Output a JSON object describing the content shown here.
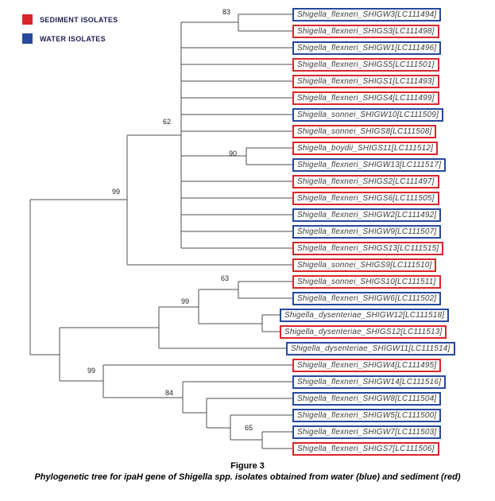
{
  "legend": {
    "items": [
      {
        "key": "sediment",
        "label": "SEDIMENT ISOLATES",
        "color": "#d9262c"
      },
      {
        "key": "water",
        "label": "WATER ISOLATES",
        "color": "#27489c"
      }
    ]
  },
  "tree": {
    "bootstraps": [
      {
        "node": "flexneri-top-pair",
        "value": "83"
      },
      {
        "node": "upper-polytomy",
        "value": "62"
      },
      {
        "node": "boydii-flexneri-pair",
        "value": "90"
      },
      {
        "node": "upper-main-clade",
        "value": "99"
      },
      {
        "node": "sonnei-pair",
        "value": "63"
      },
      {
        "node": "middle-clade",
        "value": "99"
      },
      {
        "node": "lower-main-clade",
        "value": "99"
      },
      {
        "node": "lower-subclade",
        "value": "84"
      },
      {
        "node": "bottom-pair",
        "value": "65"
      }
    ],
    "taxa": [
      {
        "label": "Shigella_flexneri_SHIGW3[LC111494]",
        "box": "water"
      },
      {
        "label": "Shigella_flexneri_SHIGS3[LC111498]",
        "box": "sediment"
      },
      {
        "label": "Shigella_flexneri_SHIGW1[LC111496]",
        "box": "water"
      },
      {
        "label": "Shigella_flexneri_SHIGS5[LC111501]",
        "box": "sediment"
      },
      {
        "label": "Shigella_flexneri_SHIGS1[LC111493]",
        "box": "sediment"
      },
      {
        "label": "Shigella_flexneri_SHIGS4[LC111499]",
        "box": "sediment"
      },
      {
        "label": "Shigella_sonnei_SHIGW10[LC111509]",
        "box": "water"
      },
      {
        "label": "Shigella_sonnei_SHIGS8[LC111508]",
        "box": "sediment"
      },
      {
        "label": "Shigella_boydii_SHIGS11[LC111512]",
        "box": "sediment"
      },
      {
        "label": "Shigella_flexneri_SHIGW13[LC111517]",
        "box": "water"
      },
      {
        "label": "Shigella_flexneri_SHIGS2[LC111497]",
        "box": "sediment"
      },
      {
        "label": "Shigella_flexneri_SHIGS6[LC111505]",
        "box": "sediment"
      },
      {
        "label": "Shigella_flexneri_SHIGW2[LC111492]",
        "box": "water"
      },
      {
        "label": "Shigella_flexneri_SHIGW9[LC111507]",
        "box": "water"
      },
      {
        "label": "Shigella_flexneri_SHIGS13[LC111515]",
        "box": "sediment"
      },
      {
        "label": "Shigella_sonnei_SHIGS9[LC111510]",
        "box": "sediment"
      },
      {
        "label": "Shigella_sonnei_SHIGS10[LC111511]",
        "box": "sediment"
      },
      {
        "label": "Shigella_flexneri_SHIGW6[LC111502]",
        "box": "water"
      },
      {
        "label": "Shigella_dysenteriae_SHIGW12[LC111518]",
        "box": "water"
      },
      {
        "label": "Shigella_dysenteriae_SHIGS12[LC111513]",
        "box": "sediment"
      },
      {
        "label": "Shigella_dysenteriae_SHIGW11[LC111514]",
        "box": "water"
      },
      {
        "label": "Shigella_flexneri_SHIGW4[LC111495]",
        "box": "sediment"
      },
      {
        "label": "Shigella_flexneri_SHIGW14[LC111516]",
        "box": "water"
      },
      {
        "label": "Shigella_flexneri_SHIGW8[LC111504]",
        "box": "water"
      },
      {
        "label": "Shigella_flexneri_SHIGW5[LC111500]",
        "box": "water"
      },
      {
        "label": "Shigella_flexneri_SHIGW7[LC111503]",
        "box": "water"
      },
      {
        "label": "Shigella_flexneri_SHIGS7[LC111506]",
        "box": "sediment"
      }
    ]
  },
  "caption": {
    "figure_label": "Figure 3",
    "text": "Phylogenetic tree for ipaH gene of Shigella spp. isolates obtained from water (blue) and sediment (red)"
  }
}
